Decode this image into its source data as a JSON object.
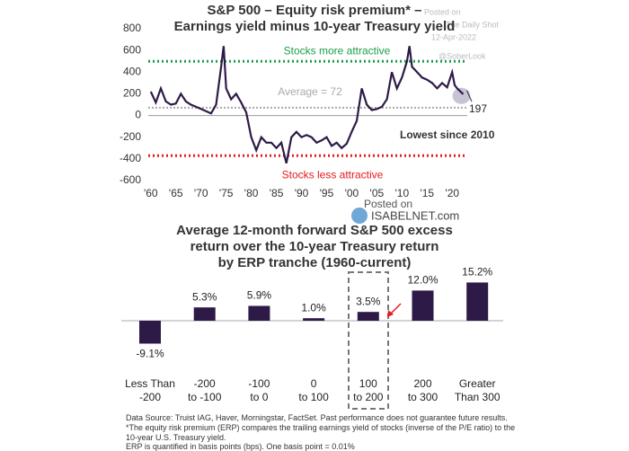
{
  "chart_data": [
    {
      "type": "line",
      "title": [
        "S&P 500 – Equity risk premium* –",
        "Earnings yield minus 10-year Treasury yield"
      ],
      "x": [
        1960,
        1961,
        1962,
        1963,
        1964,
        1965,
        1966,
        1967,
        1968,
        1969,
        1970,
        1971,
        1972,
        1973,
        1974,
        1974.5,
        1975,
        1976,
        1977,
        1978,
        1979,
        1980,
        1981,
        1982,
        1983,
        1984,
        1985,
        1986,
        1987,
        1988,
        1989,
        1990,
        1991,
        1992,
        1993,
        1994,
        1995,
        1996,
        1997,
        1998,
        1999,
        2000,
        2001,
        2002,
        2003,
        2004,
        2005,
        2006,
        2007,
        2008,
        2009,
        2010,
        2011,
        2011.5,
        2012,
        2013,
        2014,
        2015,
        2016,
        2017,
        2018,
        2019,
        2020,
        2020.5,
        2021,
        2022.2
      ],
      "values": [
        220,
        120,
        250,
        130,
        100,
        110,
        200,
        130,
        100,
        80,
        60,
        40,
        20,
        100,
        450,
        640,
        250,
        150,
        200,
        120,
        30,
        -200,
        -320,
        -200,
        -250,
        -250,
        -300,
        -250,
        -440,
        -200,
        -150,
        -200,
        -180,
        -200,
        -250,
        -230,
        -200,
        -280,
        -250,
        -300,
        -260,
        -150,
        -50,
        250,
        100,
        50,
        60,
        80,
        150,
        400,
        250,
        350,
        500,
        640,
        450,
        400,
        350,
        330,
        300,
        250,
        300,
        260,
        400,
        280,
        250,
        197
      ],
      "color": "#2e1a47",
      "xlim": [
        1959.5,
        2023
      ],
      "xticks": [
        {
          "value": 1960,
          "label": "'60"
        },
        {
          "value": 1965,
          "label": "'65"
        },
        {
          "value": 1970,
          "label": "'70"
        },
        {
          "value": 1975,
          "label": "'75"
        },
        {
          "value": 1980,
          "label": "'80"
        },
        {
          "value": 1985,
          "label": "'85"
        },
        {
          "value": 1990,
          "label": "'90"
        },
        {
          "value": 1995,
          "label": "'95"
        },
        {
          "value": 2000,
          "label": "'00"
        },
        {
          "value": 2005,
          "label": "'05"
        },
        {
          "value": 2010,
          "label": "'10"
        },
        {
          "value": 2015,
          "label": "'15"
        },
        {
          "value": 2020,
          "label": "'20"
        }
      ],
      "ylim": [
        -600,
        800
      ],
      "yticks": [
        -600,
        -400,
        -200,
        0,
        200,
        400,
        600,
        800
      ],
      "reference_lines": [
        {
          "value": 500,
          "label": "Stocks more attractive",
          "color": "#1a9e4a"
        },
        {
          "value": 72,
          "label": "Average = 72",
          "color": "#aaaaaa"
        },
        {
          "value": -370,
          "label": "Stocks less attractive",
          "color": "#e8191c"
        }
      ],
      "annotations": [
        "197",
        "Lowest since 2010"
      ]
    },
    {
      "type": "bar",
      "title": [
        "Average 12-month forward S&P 500 excess",
        "return over the 10-year Treasury return",
        "by ERP tranche (1960-current)"
      ],
      "categories": [
        [
          "Less Than",
          "-200"
        ],
        [
          "-200",
          "to -100"
        ],
        [
          "-100",
          "to 0"
        ],
        [
          "0",
          "to 100"
        ],
        [
          "100",
          "to 200"
        ],
        [
          "200",
          "to 300"
        ],
        [
          "Greater",
          "Than 300"
        ]
      ],
      "values": [
        -9.1,
        5.3,
        5.9,
        1.0,
        3.5,
        12.0,
        15.2
      ],
      "value_labels": [
        "-9.1%",
        "5.3%",
        "5.9%",
        "1.0%",
        "3.5%",
        "12.0%",
        "15.2%"
      ],
      "color": "#2e1a47"
    }
  ],
  "watermark": [
    "Posted on",
    "The Daily Shot",
    "12-Apr-2022",
    "@SoberLook"
  ],
  "logo": [
    "Posted on",
    "ISABELNET.com"
  ],
  "footnotes": [
    "Data Source: Truist IAG, Haver, Morningstar, FactSet. Past performance does not guarantee future results.",
    "*The equity risk premium (ERP) compares the trailing earnings yield of stocks (inverse of the P/E ratio) to the",
    "10-year U.S. Treasury yield.",
    "ERP is quantified in basis points (bps). One basis point = 0.01%"
  ]
}
